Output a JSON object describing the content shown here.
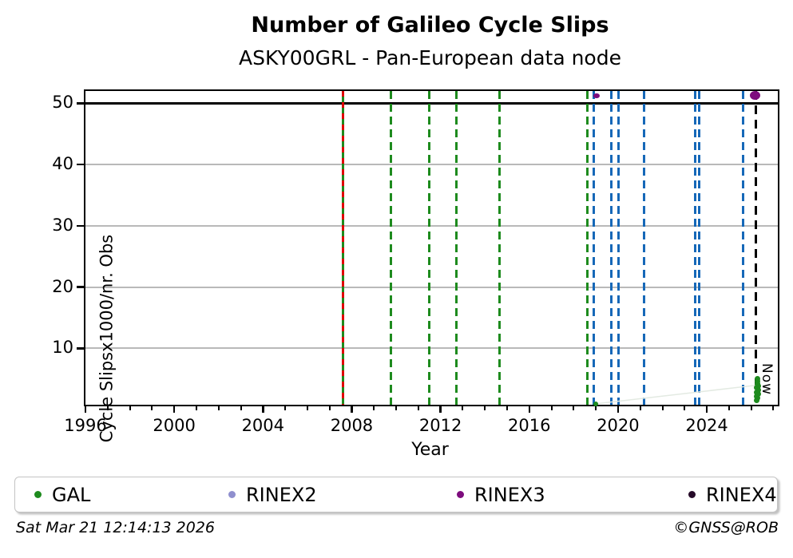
{
  "chart_data": {
    "type": "scatter",
    "title": "Number of Galileo Cycle Slips",
    "subtitle": "ASKY00GRL - Pan-European data node",
    "xlabel": "Year",
    "ylabel": "Cycle Slipsx1000/nr. Obs",
    "now_label": "Now",
    "xlim": [
      1996,
      2027.2
    ],
    "ylim": [
      0.8,
      52
    ],
    "x_major_ticks": [
      1996,
      2000,
      2004,
      2008,
      2012,
      2016,
      2020,
      2024
    ],
    "x_minor_tick_years": [
      1997,
      1998,
      1999,
      2001,
      2002,
      2003,
      2005,
      2006,
      2007,
      2009,
      2010,
      2011,
      2013,
      2014,
      2015,
      2017,
      2018,
      2019,
      2021,
      2022,
      2023,
      2025,
      2026,
      2027
    ],
    "y_major_ticks": [
      10,
      20,
      30,
      40,
      50
    ],
    "gridline_y_values": [
      10,
      20,
      30,
      40
    ],
    "threshold_line_y": 50,
    "grid_color": "#b9b9b9",
    "vlines": [
      {
        "x": 2007.62,
        "style": "solid",
        "color": "#1e8b1e",
        "name": "gal-launch-solid-green"
      },
      {
        "x": 2007.62,
        "style": "dashed",
        "color": "#e00000",
        "dash": [
          7,
          7
        ],
        "name": "red-event"
      },
      {
        "x": 2009.75,
        "style": "dashed",
        "color": "#1e8b1e",
        "dash": [
          10,
          6
        ],
        "name": "green-event"
      },
      {
        "x": 2011.5,
        "style": "dashed",
        "color": "#1e8b1e",
        "dash": [
          10,
          6
        ],
        "name": "green-event"
      },
      {
        "x": 2012.7,
        "style": "dashed",
        "color": "#1e8b1e",
        "dash": [
          10,
          6
        ],
        "name": "green-event"
      },
      {
        "x": 2014.65,
        "style": "dashed",
        "color": "#1e8b1e",
        "dash": [
          10,
          6
        ],
        "name": "green-event"
      },
      {
        "x": 2018.63,
        "style": "dashed",
        "color": "#1e8b1e",
        "dash": [
          10,
          6
        ],
        "name": "green-event"
      },
      {
        "x": 2018.92,
        "style": "dashed",
        "color": "#1668b8",
        "dash": [
          10,
          6
        ],
        "name": "blue-event"
      },
      {
        "x": 2019.68,
        "style": "dashed",
        "color": "#1668b8",
        "dash": [
          10,
          6
        ],
        "name": "blue-event"
      },
      {
        "x": 2020.02,
        "style": "dashed",
        "color": "#1668b8",
        "dash": [
          10,
          6
        ],
        "name": "blue-event"
      },
      {
        "x": 2021.19,
        "style": "dashed",
        "color": "#1668b8",
        "dash": [
          10,
          6
        ],
        "name": "blue-event"
      },
      {
        "x": 2023.46,
        "style": "dashed",
        "color": "#1668b8",
        "dash": [
          10,
          6
        ],
        "name": "blue-event"
      },
      {
        "x": 2023.64,
        "style": "dashed",
        "color": "#1668b8",
        "dash": [
          10,
          6
        ],
        "name": "blue-event"
      },
      {
        "x": 2025.65,
        "style": "dashed",
        "color": "#1668b8",
        "dash": [
          10,
          6
        ],
        "name": "blue-event"
      },
      {
        "x": 2026.22,
        "style": "dashed",
        "color": "#000000",
        "dash": [
          11,
          7
        ],
        "name": "now-line"
      }
    ],
    "series": [
      {
        "name": "GAL",
        "color": "#1e8b1e",
        "marker_w": 7,
        "marker_h": 7,
        "points": [
          [
            2019.0,
            0.95,
            0.9
          ],
          [
            2026.25,
            1.55,
            1
          ],
          [
            2026.3,
            1.85,
            1
          ],
          [
            2026.24,
            2.2,
            1
          ],
          [
            2026.32,
            2.5,
            1
          ],
          [
            2026.26,
            2.85,
            1
          ],
          [
            2026.33,
            3.2,
            1
          ],
          [
            2026.25,
            3.55,
            1
          ],
          [
            2026.31,
            3.9,
            1
          ],
          [
            2026.27,
            4.3,
            1
          ],
          [
            2026.3,
            4.7,
            1
          ],
          [
            2026.28,
            5.0,
            1
          ]
        ]
      },
      {
        "name": "RINEX2",
        "color": "#8f8fce",
        "marker_w": 9,
        "marker_h": 9,
        "points": []
      },
      {
        "name": "RINEX3",
        "color": "#7d0c7d",
        "marker_w": 13,
        "marker_h": 11,
        "points": [
          [
            2019.03,
            51.2,
            0.55
          ],
          [
            2026.19,
            51.25,
            1
          ]
        ]
      },
      {
        "name": "RINEX4",
        "color": "#260a28",
        "marker_w": 9,
        "marker_h": 9,
        "points": []
      }
    ],
    "connector_line": {
      "color": "#e3eae2",
      "points": [
        [
          2019.0,
          0.95
        ],
        [
          2026.28,
          4.0
        ]
      ]
    }
  },
  "legend": {
    "items": [
      {
        "label": "GAL",
        "color": "#1e8b1e"
      },
      {
        "label": "RINEX2",
        "color": "#8f8fce"
      },
      {
        "label": "RINEX3",
        "color": "#7d0c7d"
      },
      {
        "label": "RINEX4",
        "color": "#260a28"
      }
    ]
  },
  "footer": {
    "timestamp": "Sat Mar 21 12:14:13 2026",
    "credit": "©GNSS@ROB"
  }
}
